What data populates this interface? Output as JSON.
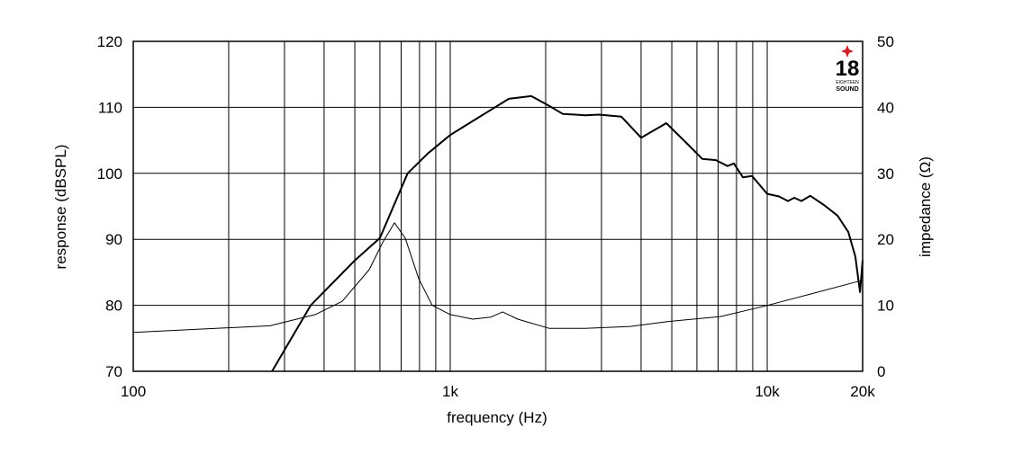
{
  "chart_data": {
    "type": "line",
    "xlabel": "frequency (Hz)",
    "ylabel": "response (dBSPL)",
    "y2label": "impedance (Ω)",
    "xscale": "log",
    "xlim": [
      100,
      20000
    ],
    "xticks": [
      100,
      {
        "value": 1000,
        "label": "1k"
      },
      {
        "value": 10000,
        "label": "10k"
      },
      {
        "value": 20000,
        "label": "20k"
      }
    ],
    "xminor": [
      200,
      300,
      400,
      500,
      600,
      700,
      800,
      900,
      2000,
      3000,
      4000,
      5000,
      6000,
      7000,
      8000,
      9000
    ],
    "ylim": [
      70,
      120
    ],
    "yticks": [
      70,
      80,
      90,
      100,
      110,
      120
    ],
    "y2lim": [
      0,
      50
    ],
    "y2ticks": [
      0,
      10,
      20,
      30,
      40,
      50
    ],
    "grid": true,
    "series": [
      {
        "name": "response",
        "color": "#000000",
        "width": 2,
        "x": [
          274,
          363,
          500,
          600,
          734,
          849,
          1000,
          1300,
          1531,
          1802,
          2054,
          2265,
          2668,
          2943,
          3466,
          4000,
          4805,
          5479,
          6240,
          6887,
          7499,
          7851,
          8377,
          8953,
          10000,
          10890,
          11620,
          12170,
          12820,
          13680,
          15100,
          16660,
          18020,
          18970,
          19630,
          20000
        ],
        "values": [
          70,
          80,
          86.8,
          90.2,
          100,
          103,
          105.8,
          109.2,
          111.3,
          111.7,
          110.2,
          109,
          108.8,
          108.9,
          108.6,
          105.4,
          107.6,
          104.9,
          102.2,
          102,
          101.1,
          101.5,
          99.4,
          99.6,
          96.9,
          96.5,
          95.8,
          96.3,
          95.8,
          96.6,
          95.2,
          93.6,
          91.1,
          87.4,
          82,
          86.8
        ]
      },
      {
        "name": "impedance",
        "color": "#000000",
        "width": 1,
        "axis": "y2",
        "x": [
          100,
          270,
          375,
          456,
          555,
          612,
          667,
          721,
          796,
          877,
          1000,
          1178,
          1342,
          1462,
          1633,
          2054,
          2668,
          3700,
          4805,
          7118,
          9863,
          13680,
          20000
        ],
        "values": [
          5.9,
          6.9,
          8.6,
          10.6,
          15.4,
          19.5,
          22.5,
          20.2,
          14,
          10,
          8.6,
          7.9,
          8.2,
          9,
          7.9,
          6.5,
          6.5,
          6.8,
          7.5,
          8.3,
          9.9,
          11.7,
          13.8
        ]
      }
    ]
  },
  "logo": {
    "number": "18",
    "line1": "EIGHTEEN",
    "line2": "SOUND"
  }
}
